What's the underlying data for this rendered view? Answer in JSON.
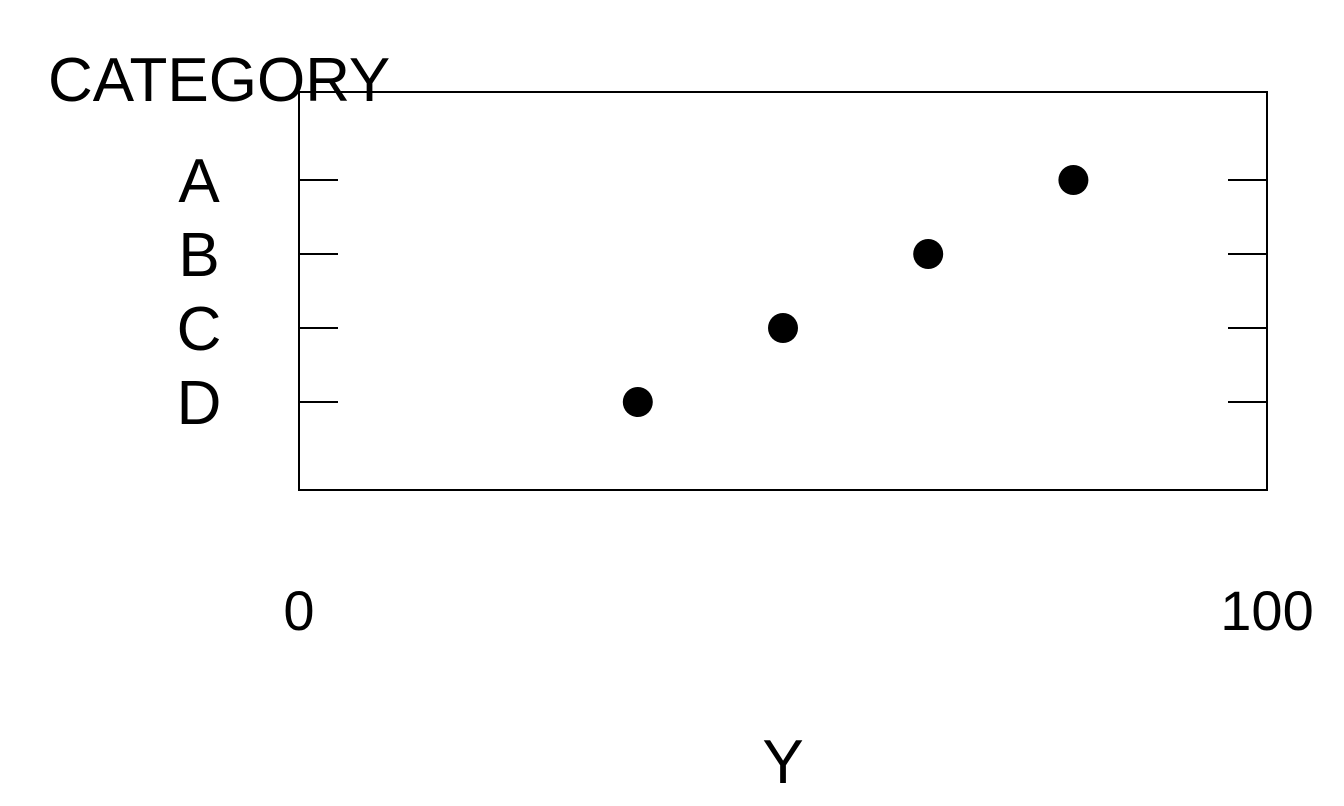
{
  "chart_data": {
    "type": "scatter",
    "title": "",
    "ylabel": "CATEGORY",
    "xlabel": "Y",
    "categories": [
      "A",
      "B",
      "C",
      "D"
    ],
    "values": [
      80,
      65,
      50,
      35
    ],
    "xlim": [
      0,
      100
    ],
    "x_tick_labels": [
      "0",
      "100"
    ],
    "grid": false,
    "legend": "none",
    "marker": "filled-circle",
    "colors": {
      "marker": "#000000",
      "axis": "#000000",
      "background": "#ffffff"
    }
  }
}
